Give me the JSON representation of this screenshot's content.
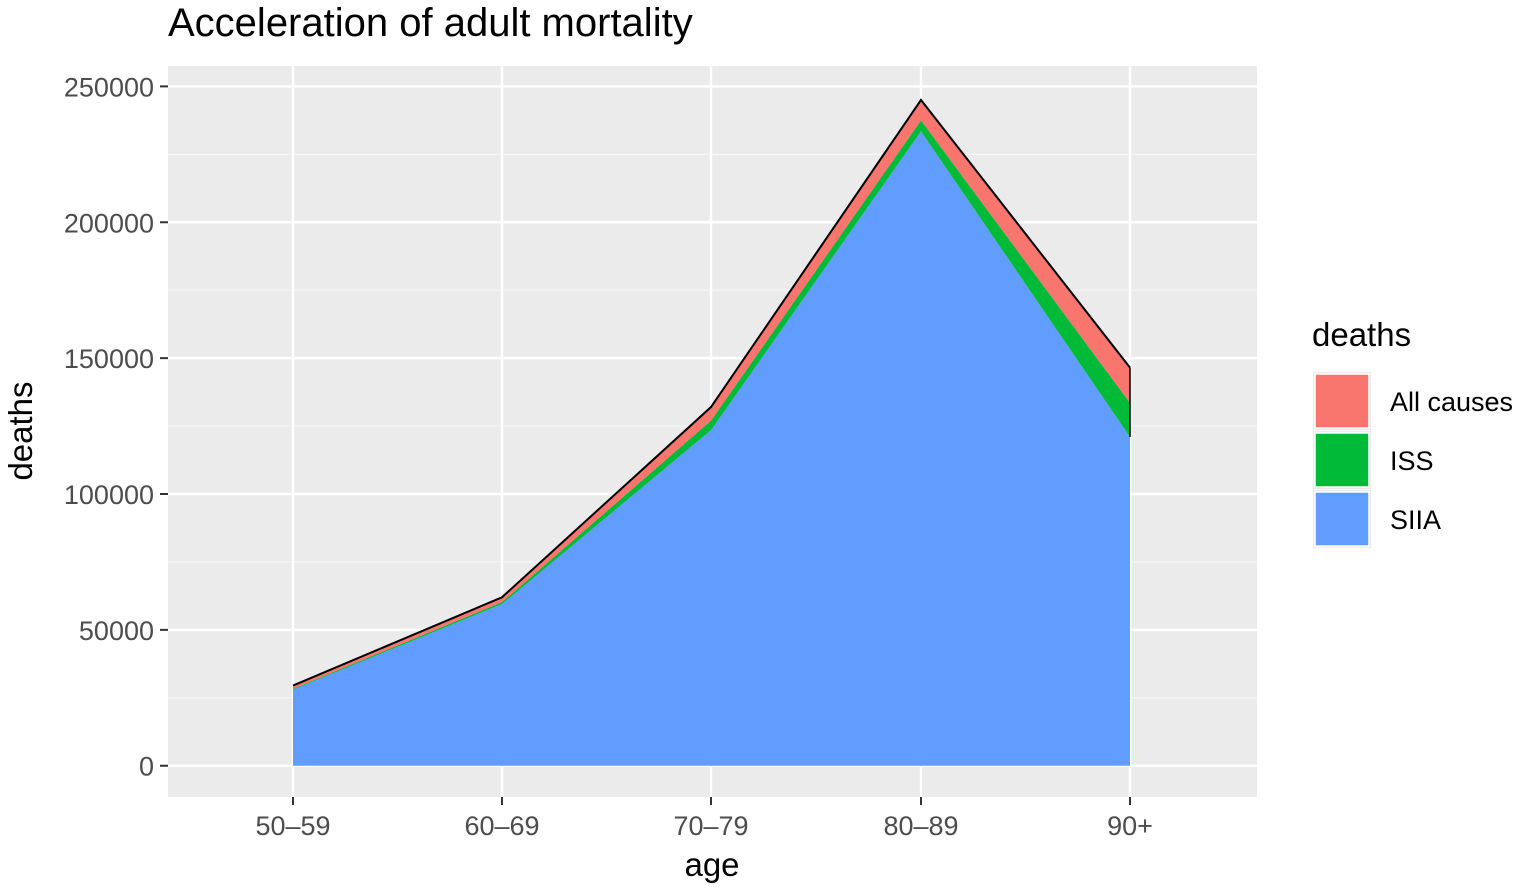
{
  "chart_data": {
    "type": "area",
    "stacked": true,
    "title": "Acceleration of adult mortality",
    "xlabel": "age",
    "ylabel": "deaths",
    "categories": [
      "50–59",
      "60–69",
      "70–79",
      "80–89",
      "90+"
    ],
    "yticks": [
      0,
      50000,
      100000,
      150000,
      200000,
      250000
    ],
    "ytick_labels": [
      "0",
      "50000",
      "100000",
      "150000",
      "200000",
      "250000"
    ],
    "ylim": [
      -11500,
      257500
    ],
    "grid": true,
    "legend": {
      "title": "deaths",
      "position": "right",
      "entries": [
        "All causes",
        "ISS",
        "SIIA"
      ]
    },
    "series": [
      {
        "name": "SIIA",
        "color": "#619CFF",
        "values": [
          28000,
          59500,
          123500,
          233500,
          121000
        ]
      },
      {
        "name": "ISS",
        "color": "#00BA38",
        "values": [
          300,
          700,
          3500,
          4000,
          12500
        ]
      },
      {
        "name": "All causes",
        "color": "#F8766D",
        "values": [
          1200,
          1800,
          5000,
          7500,
          13000
        ]
      }
    ],
    "colors": {
      "panel_background": "#EBEBEB",
      "grid_major": "#FFFFFF",
      "grid_minor": "#F7F7F7",
      "outline": "#000000"
    }
  }
}
